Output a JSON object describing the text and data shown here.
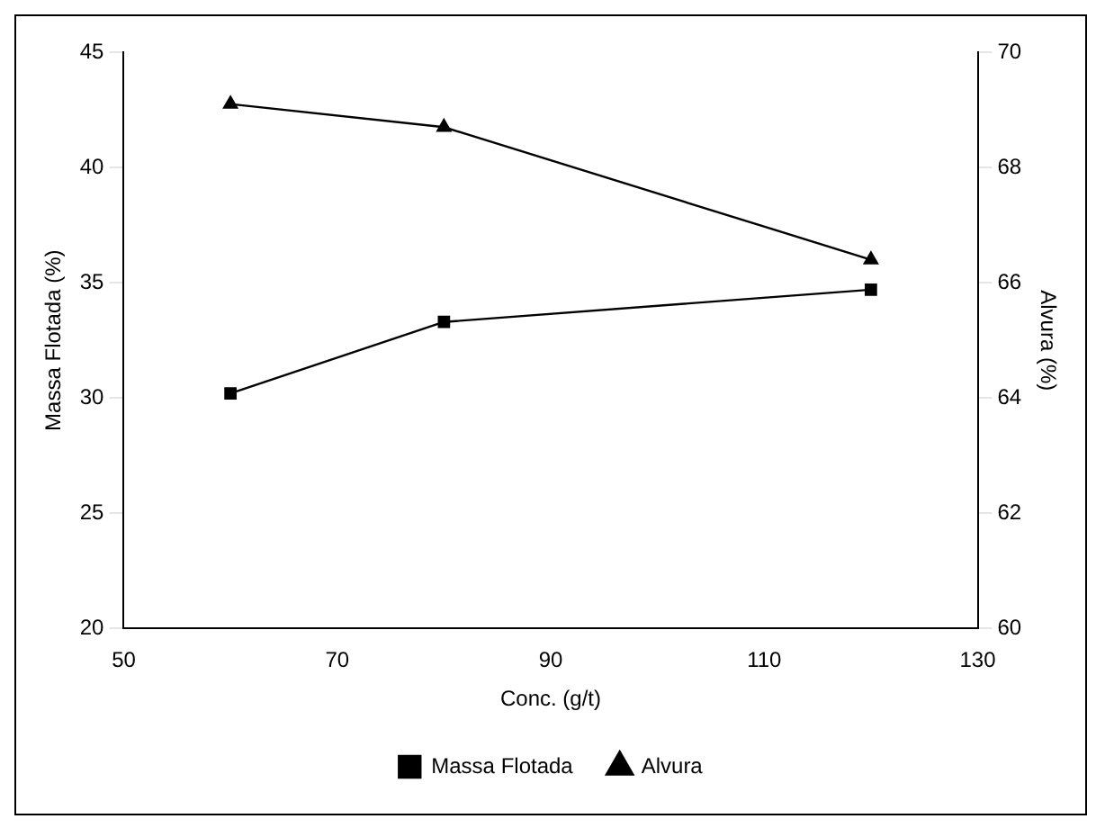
{
  "chart_data": {
    "type": "line",
    "xlabel": "Conc. (g/t)",
    "ylabel": "Massa Flotada (%)",
    "y2label": "Alvura (%)",
    "x": [
      60,
      80,
      120
    ],
    "xlim": [
      50,
      130
    ],
    "xticks": [
      50,
      70,
      90,
      110,
      130
    ],
    "ylim": [
      20,
      45
    ],
    "yticks": [
      20,
      25,
      30,
      35,
      40,
      45
    ],
    "y2lim": [
      60,
      70
    ],
    "y2ticks": [
      60,
      62,
      64,
      66,
      68,
      70
    ],
    "grid": false,
    "legend": "bottom",
    "line_style": "solid",
    "series": [
      {
        "name": "Massa Flotada",
        "color": "#000000",
        "marker": "square",
        "values": [
          30.2,
          33.3,
          34.7
        ]
      },
      {
        "name": "Alvura",
        "color": "#000000",
        "marker": "triangle",
        "axis": "y2",
        "values": [
          69.1,
          68.7,
          66.4
        ]
      }
    ]
  }
}
